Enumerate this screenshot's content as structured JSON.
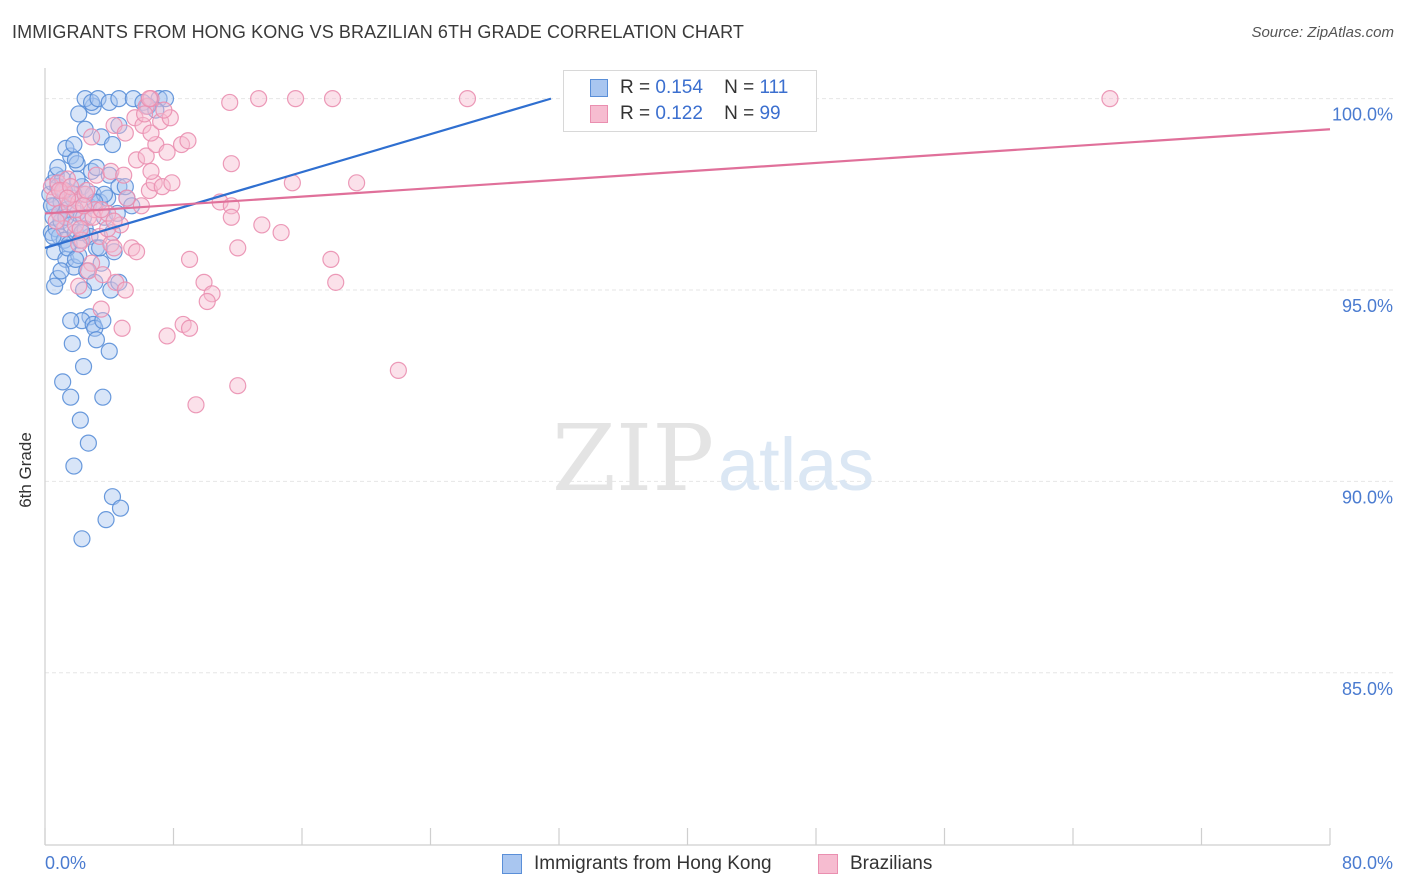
{
  "title": "IMMIGRANTS FROM HONG KONG VS BRAZILIAN 6TH GRADE CORRELATION CHART",
  "source": "Source: ZipAtlas.com",
  "watermark": {
    "zip": "ZIP",
    "atlas": "atlas"
  },
  "colors": {
    "blue_fill": "#a9c6f0",
    "blue_stroke": "#5a8fd8",
    "blue_line": "#2f6fd0",
    "pink_fill": "#f6bcd0",
    "pink_stroke": "#ea8fb0",
    "pink_line": "#e0709a",
    "grid": "#e6e6e6",
    "axis_label": "#4a7bd0"
  },
  "legend": {
    "rows": [
      {
        "r_label": "R =",
        "r_value": "0.154",
        "n_label": "N =",
        "n_value": "111",
        "series": "blue"
      },
      {
        "r_label": "R =",
        "r_value": "0.122",
        "n_label": "N =",
        "n_value": "99",
        "series": "pink"
      }
    ]
  },
  "bottom_legend": [
    {
      "label": "Immigrants from Hong Kong",
      "series": "blue"
    },
    {
      "label": "Brazilians",
      "series": "pink"
    }
  ],
  "chart_data": {
    "type": "scatter",
    "title": "IMMIGRANTS FROM HONG KONG VS BRAZILIAN 6TH GRADE CORRELATION CHART",
    "xlabel": "",
    "ylabel": "6th Grade",
    "xlim": [
      0,
      80
    ],
    "ylim": [
      80.5,
      100.8
    ],
    "x_tick_labels": [
      {
        "value": 0,
        "label": "0.0%"
      },
      {
        "value": 80,
        "label": "80.0%"
      }
    ],
    "y_tick_labels": [
      {
        "value": 100,
        "label": "100.0%"
      },
      {
        "value": 95,
        "label": "95.0%"
      },
      {
        "value": 90,
        "label": "90.0%"
      },
      {
        "value": 85,
        "label": "85.0%"
      }
    ],
    "series": [
      {
        "name": "Immigrants from Hong Kong",
        "color": "blue",
        "trend": {
          "x": [
            0,
            31.5
          ],
          "y": [
            96.1,
            100.0
          ]
        },
        "points": [
          [
            0.3,
            97.5
          ],
          [
            0.4,
            96.5
          ],
          [
            0.5,
            97.8
          ],
          [
            0.5,
            96.9
          ],
          [
            0.6,
            97.2
          ],
          [
            0.6,
            96.0
          ],
          [
            0.7,
            98.0
          ],
          [
            0.7,
            96.6
          ],
          [
            0.8,
            95.3
          ],
          [
            0.8,
            97.7
          ],
          [
            0.9,
            96.4
          ],
          [
            1.0,
            97.3
          ],
          [
            1.0,
            96.8
          ],
          [
            1.1,
            97.9
          ],
          [
            1.2,
            97.6
          ],
          [
            1.2,
            96.3
          ],
          [
            1.3,
            95.8
          ],
          [
            1.4,
            97.1
          ],
          [
            1.5,
            96.2
          ],
          [
            1.6,
            96.7
          ],
          [
            1.7,
            97.4
          ],
          [
            1.8,
            95.6
          ],
          [
            1.9,
            96.5
          ],
          [
            2.0,
            97.0
          ],
          [
            2.1,
            95.9
          ],
          [
            2.2,
            96.3
          ],
          [
            2.3,
            97.7
          ],
          [
            2.5,
            96.6
          ],
          [
            2.6,
            95.5
          ],
          [
            2.7,
            97.2
          ],
          [
            2.8,
            96.4
          ],
          [
            3.0,
            97.5
          ],
          [
            3.1,
            95.2
          ],
          [
            3.2,
            96.1
          ],
          [
            3.4,
            97.3
          ],
          [
            3.5,
            95.7
          ],
          [
            3.7,
            96.9
          ],
          [
            3.9,
            97.4
          ],
          [
            4.2,
            96.5
          ],
          [
            4.5,
            97.0
          ],
          [
            0.5,
            96.4
          ],
          [
            0.9,
            97.0
          ],
          [
            1.4,
            96.1
          ],
          [
            2.4,
            96.9
          ],
          [
            0.8,
            98.2
          ],
          [
            1.6,
            98.5
          ],
          [
            2.0,
            98.3
          ],
          [
            2.9,
            98.1
          ],
          [
            3.2,
            98.2
          ],
          [
            4.0,
            98.0
          ],
          [
            4.6,
            97.7
          ],
          [
            5.1,
            97.4
          ],
          [
            5.4,
            97.2
          ],
          [
            2.5,
            97.5
          ],
          [
            1.8,
            97.5
          ],
          [
            1.3,
            98.7
          ],
          [
            1.8,
            98.8
          ],
          [
            3.5,
            99.0
          ],
          [
            4.2,
            98.8
          ],
          [
            4.6,
            99.3
          ],
          [
            2.5,
            99.2
          ],
          [
            3.0,
            99.8
          ],
          [
            2.1,
            99.6
          ],
          [
            2.5,
            100.0
          ],
          [
            2.9,
            99.9
          ],
          [
            3.3,
            100.0
          ],
          [
            4.0,
            99.9
          ],
          [
            4.6,
            100.0
          ],
          [
            5.5,
            100.0
          ],
          [
            6.1,
            99.9
          ],
          [
            7.1,
            100.0
          ],
          [
            6.4,
            99.8
          ],
          [
            7.5,
            100.0
          ],
          [
            6.9,
            99.7
          ],
          [
            2.8,
            94.3
          ],
          [
            2.3,
            94.2
          ],
          [
            3.0,
            94.1
          ],
          [
            3.1,
            94.0
          ],
          [
            3.6,
            94.2
          ],
          [
            3.2,
            93.7
          ],
          [
            1.7,
            93.6
          ],
          [
            2.4,
            93.0
          ],
          [
            4.0,
            93.4
          ],
          [
            1.1,
            92.6
          ],
          [
            1.6,
            92.2
          ],
          [
            3.6,
            92.2
          ],
          [
            2.2,
            91.6
          ],
          [
            2.7,
            91.0
          ],
          [
            1.8,
            90.4
          ],
          [
            4.2,
            89.6
          ],
          [
            3.8,
            89.0
          ],
          [
            4.7,
            89.3
          ],
          [
            2.3,
            88.5
          ],
          [
            1.9,
            95.8
          ],
          [
            2.4,
            95.0
          ],
          [
            4.1,
            95.0
          ],
          [
            4.6,
            95.2
          ],
          [
            4.3,
            96.0
          ],
          [
            0.6,
            95.1
          ],
          [
            1.6,
            94.2
          ],
          [
            1.0,
            95.5
          ],
          [
            2.3,
            96.5
          ],
          [
            3.4,
            96.1
          ],
          [
            1.3,
            96.9
          ],
          [
            2.0,
            97.9
          ],
          [
            3.7,
            97.5
          ],
          [
            5.0,
            97.7
          ],
          [
            0.4,
            97.2
          ],
          [
            1.2,
            97.6
          ],
          [
            1.9,
            98.4
          ],
          [
            3.1,
            97.3
          ]
        ]
      },
      {
        "name": "Brazilians",
        "color": "pink",
        "trend": {
          "x": [
            0,
            80
          ],
          "y": [
            97.0,
            99.2
          ]
        },
        "points": [
          [
            0.4,
            97.7
          ],
          [
            0.6,
            97.4
          ],
          [
            0.8,
            97.8
          ],
          [
            0.9,
            97.0
          ],
          [
            1.1,
            97.6
          ],
          [
            1.2,
            96.6
          ],
          [
            1.4,
            97.9
          ],
          [
            1.5,
            97.2
          ],
          [
            1.7,
            97.5
          ],
          [
            1.9,
            96.7
          ],
          [
            2.1,
            97.3
          ],
          [
            2.3,
            96.3
          ],
          [
            2.5,
            97.5
          ],
          [
            2.7,
            96.9
          ],
          [
            2.9,
            95.7
          ],
          [
            3.1,
            97.1
          ],
          [
            3.4,
            96.4
          ],
          [
            3.6,
            95.4
          ],
          [
            3.9,
            97.0
          ],
          [
            4.1,
            96.2
          ],
          [
            4.4,
            95.2
          ],
          [
            4.7,
            96.7
          ],
          [
            5.0,
            95.0
          ],
          [
            5.4,
            96.1
          ],
          [
            5.7,
            96.0
          ],
          [
            6.0,
            97.2
          ],
          [
            6.5,
            97.6
          ],
          [
            6.8,
            97.8
          ],
          [
            7.3,
            97.7
          ],
          [
            7.9,
            97.8
          ],
          [
            3.2,
            98.0
          ],
          [
            4.1,
            98.1
          ],
          [
            4.9,
            98.0
          ],
          [
            5.7,
            98.4
          ],
          [
            6.3,
            98.5
          ],
          [
            6.6,
            98.1
          ],
          [
            6.9,
            98.8
          ],
          [
            7.6,
            98.6
          ],
          [
            8.5,
            98.8
          ],
          [
            8.9,
            98.9
          ],
          [
            2.9,
            99.0
          ],
          [
            4.3,
            99.3
          ],
          [
            5.0,
            99.1
          ],
          [
            5.6,
            99.5
          ],
          [
            6.1,
            99.3
          ],
          [
            6.6,
            99.1
          ],
          [
            7.2,
            99.4
          ],
          [
            7.8,
            99.5
          ],
          [
            6.3,
            99.8
          ],
          [
            6.6,
            100.0
          ],
          [
            7.4,
            99.7
          ],
          [
            6.2,
            99.6
          ],
          [
            6.5,
            100.0
          ],
          [
            11.5,
            99.9
          ],
          [
            13.3,
            100.0
          ],
          [
            15.6,
            100.0
          ],
          [
            17.9,
            100.0
          ],
          [
            26.3,
            100.0
          ],
          [
            66.3,
            100.0
          ],
          [
            11.6,
            98.3
          ],
          [
            15.4,
            97.8
          ],
          [
            19.4,
            97.8
          ],
          [
            10.9,
            97.3
          ],
          [
            11.6,
            97.2
          ],
          [
            11.6,
            96.9
          ],
          [
            13.5,
            96.7
          ],
          [
            14.7,
            96.5
          ],
          [
            12.0,
            96.1
          ],
          [
            17.8,
            95.8
          ],
          [
            18.1,
            95.2
          ],
          [
            9.0,
            95.8
          ],
          [
            9.9,
            95.2
          ],
          [
            10.4,
            94.9
          ],
          [
            10.1,
            94.7
          ],
          [
            8.6,
            94.1
          ],
          [
            9.0,
            94.0
          ],
          [
            7.6,
            93.8
          ],
          [
            4.8,
            94.0
          ],
          [
            3.5,
            94.5
          ],
          [
            2.1,
            95.1
          ],
          [
            2.7,
            95.5
          ],
          [
            4.3,
            96.1
          ],
          [
            22.0,
            92.9
          ],
          [
            12.0,
            92.5
          ],
          [
            9.4,
            92.0
          ],
          [
            2.6,
            97.6
          ],
          [
            1.9,
            97.1
          ],
          [
            2.2,
            96.6
          ],
          [
            3.0,
            96.9
          ],
          [
            3.5,
            97.1
          ],
          [
            0.7,
            96.8
          ],
          [
            0.9,
            97.6
          ],
          [
            1.6,
            97.7
          ],
          [
            2.4,
            97.2
          ],
          [
            3.9,
            96.6
          ],
          [
            4.3,
            96.8
          ],
          [
            5.1,
            97.4
          ],
          [
            2.1,
            96.2
          ],
          [
            1.4,
            97.4
          ]
        ]
      }
    ]
  }
}
